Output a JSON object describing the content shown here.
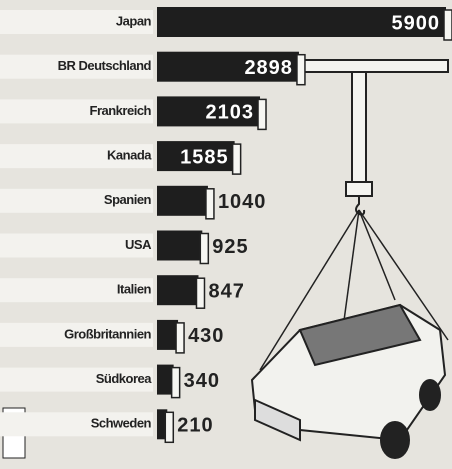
{
  "chart_data": {
    "type": "bar",
    "orientation": "horizontal",
    "categories": [
      "Japan",
      "BR Deutschland",
      "Frankreich",
      "Kanada",
      "Spanien",
      "USA",
      "Italien",
      "Großbritannien",
      "Südkorea",
      "Schweden"
    ],
    "values": [
      5900,
      2898,
      2103,
      1585,
      1040,
      925,
      847,
      430,
      340,
      210
    ],
    "color": "#1e1e1e"
  }
}
